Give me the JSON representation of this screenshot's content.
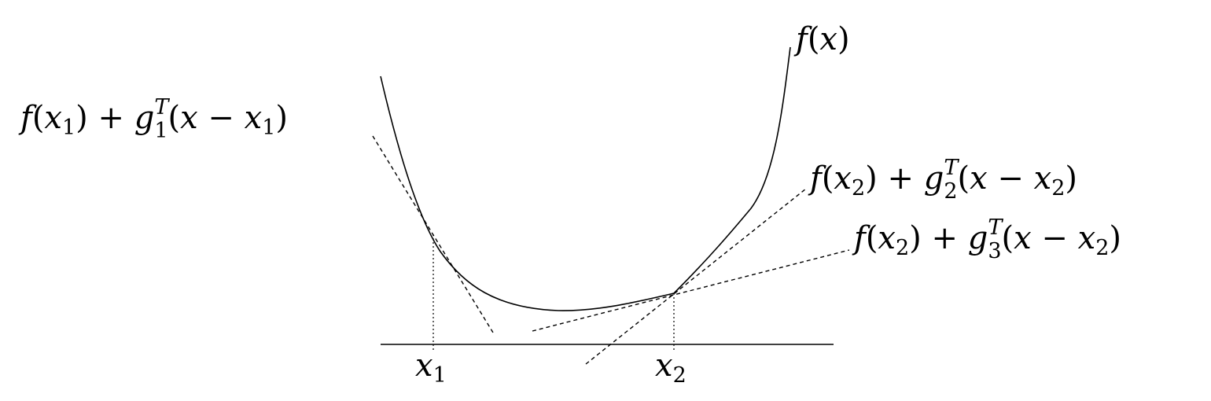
{
  "figure": {
    "curve_label": {
      "base": "f",
      "paren_open": "(",
      "var": "x",
      "paren_close": ")"
    },
    "tangent_1": {
      "pre": "f(",
      "x": "x",
      "x_sub": "1",
      "mid": ") + ",
      "g": "g",
      "g_sup": "T",
      "g_sub": "1",
      "open": "(x − ",
      "x2": "x",
      "x2_sub": "1",
      "close": ")"
    },
    "tangent_2": {
      "pre": "f(",
      "x": "x",
      "x_sub": "2",
      "mid": ") + ",
      "g": "g",
      "g_sup": "T",
      "g_sub": "2",
      "open": "(x − ",
      "x2": "x",
      "x2_sub": "2",
      "close": ")"
    },
    "tangent_3": {
      "pre": "f(",
      "x": "x",
      "x_sub": "2",
      "mid": ") + ",
      "g": "g",
      "g_sup": "T",
      "g_sub": "3",
      "open": "(x − ",
      "x2": "x",
      "x2_sub": "2",
      "close": ")"
    },
    "axis_tick_1": {
      "var": "x",
      "sub": "1"
    },
    "axis_tick_2": {
      "var": "x",
      "sub": "2"
    }
  }
}
